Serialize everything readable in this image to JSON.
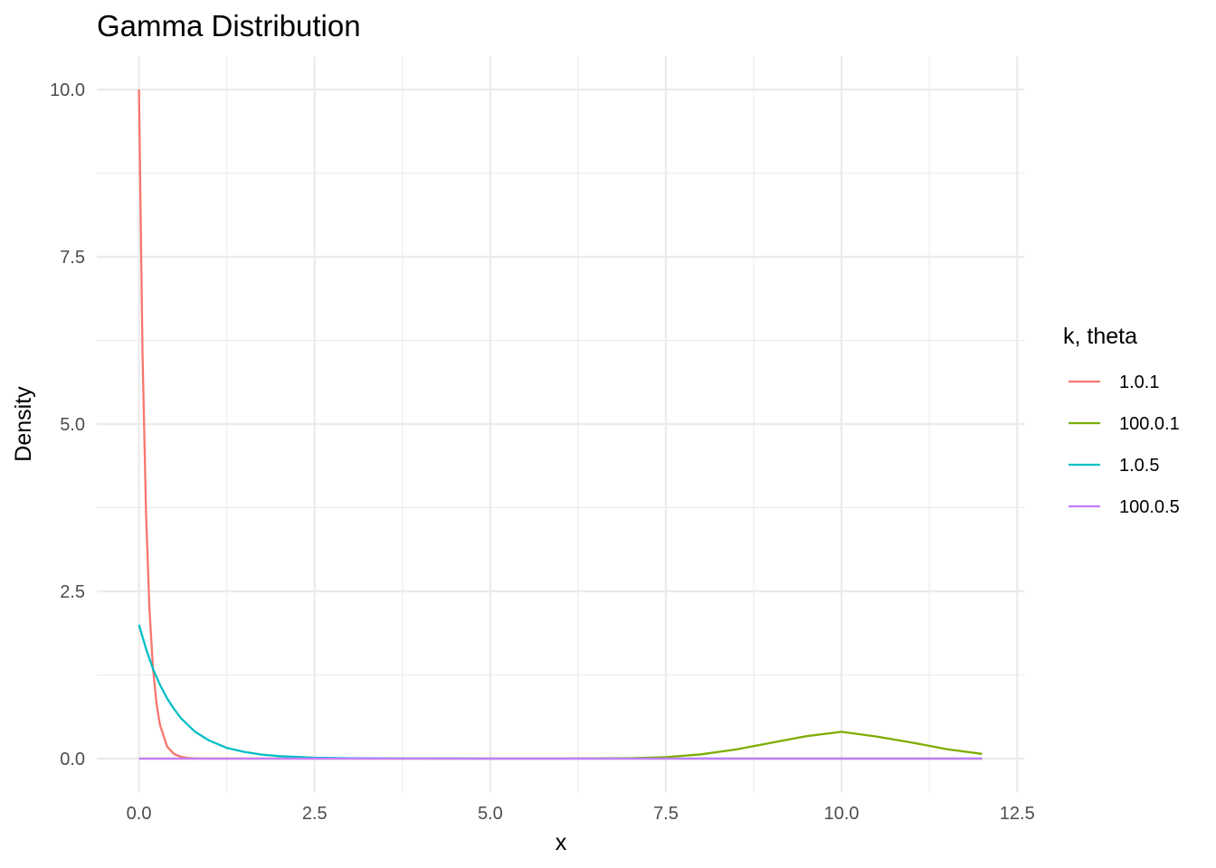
{
  "chart_data": {
    "type": "line",
    "title": "Gamma Distribution",
    "xlabel": "x",
    "ylabel": "Density",
    "xlim": [
      -0.6,
      12.6
    ],
    "ylim": [
      -0.5,
      10.5
    ],
    "x_ticks": [
      0.0,
      2.5,
      5.0,
      7.5,
      10.0,
      12.5
    ],
    "x_tick_labels": [
      "0.0",
      "2.5",
      "5.0",
      "7.5",
      "10.0",
      "12.5"
    ],
    "y_ticks": [
      0.0,
      2.5,
      5.0,
      7.5,
      10.0
    ],
    "y_tick_labels": [
      "0.0",
      "2.5",
      "5.0",
      "7.5",
      "10.0"
    ],
    "grid": true,
    "legend": {
      "title": "k, theta",
      "position": "right"
    },
    "series": [
      {
        "name": "1.0.1",
        "color": "#F8766D",
        "x": [
          0,
          0.05,
          0.1,
          0.15,
          0.2,
          0.25,
          0.3,
          0.4,
          0.5,
          0.6,
          0.7,
          0.8,
          1.0,
          1.5,
          2,
          3,
          4,
          5,
          6,
          7,
          8,
          9,
          10,
          11,
          12
        ],
        "y": [
          10.0,
          6.07,
          3.68,
          2.23,
          1.35,
          0.82,
          0.5,
          0.18,
          0.067,
          0.025,
          0.009,
          0.003,
          0.0005,
          0,
          0,
          0,
          0,
          0,
          0,
          0,
          0,
          0,
          0,
          0,
          0
        ]
      },
      {
        "name": "100.0.1",
        "color": "#7CAE00",
        "x": [
          0,
          5,
          6,
          7,
          7.5,
          8,
          8.5,
          9,
          9.5,
          10,
          10.5,
          11,
          11.5,
          12
        ],
        "y": [
          0,
          0,
          0.0005,
          0.007,
          0.022,
          0.063,
          0.137,
          0.237,
          0.335,
          0.4,
          0.33,
          0.24,
          0.14,
          0.07
        ]
      },
      {
        "name": "1.0.5",
        "color": "#00BFC4",
        "x": [
          0,
          0.1,
          0.2,
          0.3,
          0.4,
          0.5,
          0.6,
          0.8,
          1.0,
          1.25,
          1.5,
          1.75,
          2.0,
          2.5,
          3.0,
          4.0,
          5.0,
          6,
          8,
          10,
          12
        ],
        "y": [
          2.0,
          1.64,
          1.34,
          1.1,
          0.9,
          0.74,
          0.6,
          0.4,
          0.27,
          0.16,
          0.1,
          0.06,
          0.037,
          0.013,
          0.005,
          0.0007,
          0.0001,
          0,
          0,
          0,
          0
        ]
      },
      {
        "name": "100.0.5",
        "color": "#C77CFF",
        "x": [
          0,
          12
        ],
        "y": [
          0,
          0
        ]
      }
    ]
  }
}
